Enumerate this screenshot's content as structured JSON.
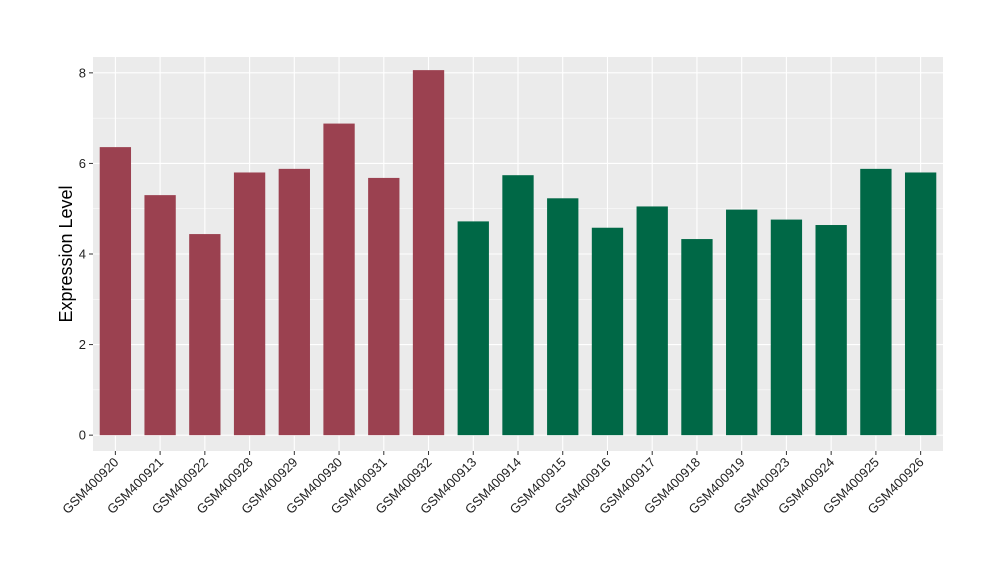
{
  "chart_data": {
    "type": "bar",
    "title": "",
    "xlabel": "",
    "ylabel": "Expression Level",
    "ylim": [
      -0.35,
      8.35
    ],
    "yticks": [
      0,
      2,
      4,
      6,
      8
    ],
    "grid": true,
    "categories": [
      "GSM400920",
      "GSM400921",
      "GSM400922",
      "GSM400928",
      "GSM400929",
      "GSM400930",
      "GSM400931",
      "GSM400932",
      "GSM400913",
      "GSM400914",
      "GSM400915",
      "GSM400916",
      "GSM400917",
      "GSM400918",
      "GSM400919",
      "GSM400923",
      "GSM400924",
      "GSM400925",
      "GSM400926"
    ],
    "values": [
      6.36,
      5.3,
      4.44,
      5.8,
      5.88,
      6.88,
      5.68,
      8.06,
      4.72,
      5.74,
      5.23,
      4.58,
      5.05,
      4.33,
      4.98,
      4.76,
      4.64,
      5.88,
      5.8
    ],
    "groups": [
      0,
      0,
      0,
      0,
      0,
      0,
      0,
      0,
      1,
      1,
      1,
      1,
      1,
      1,
      1,
      1,
      1,
      1,
      1
    ],
    "group_colors": [
      "#9b4150",
      "#006846"
    ],
    "panel_background": "#ebebeb",
    "grid_color": "#ffffff"
  }
}
